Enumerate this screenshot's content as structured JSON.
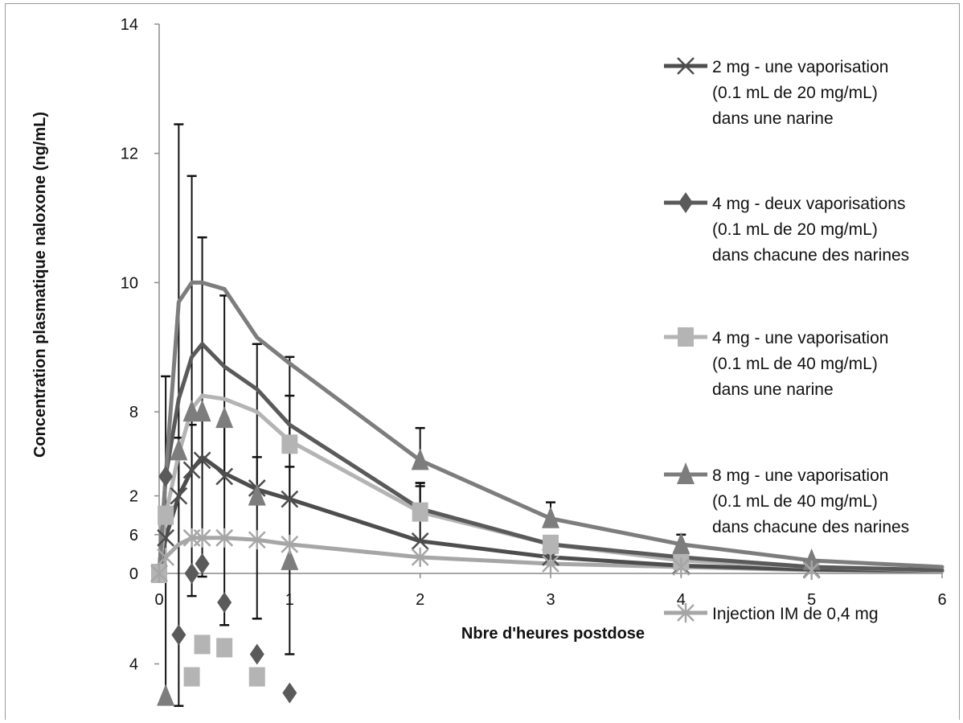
{
  "chart_data": {
    "type": "line",
    "title": "",
    "xlabel": "Nbre d'heures postdose",
    "ylabel": "Concentration plasmatique naloxone (ng/mL)",
    "x_ticks": [
      "0",
      "1",
      "2",
      "3",
      "4",
      "5",
      "6"
    ],
    "xlim": [
      0,
      6
    ],
    "y_ticks": [
      {
        "label": "0",
        "value": 0
      },
      {
        "label": "6",
        "value": 0.6
      },
      {
        "label": "2",
        "value": 1.2
      },
      {
        "label": "8",
        "value": 2.5
      },
      {
        "label": "10",
        "value": 4.5
      },
      {
        "label": "12",
        "value": 6.5
      },
      {
        "label": "14",
        "value": 8.5
      },
      {
        "label": "4",
        "value": -1.4
      }
    ],
    "ylim": [
      -2,
      8.5
    ],
    "grid": false,
    "legend_position": "right",
    "series": [
      {
        "name": "2 mg - une vaporisation (0.1 mL de 20 mg/mL) dans une narine",
        "legend_lines": [
          "2 mg - une vaporisation",
          "(0.1 mL de 20 mg/mL)",
          "dans une narine"
        ],
        "marker": "x",
        "color": "#4d4d4d",
        "x": [
          0,
          0.05,
          0.15,
          0.25,
          0.33,
          0.5,
          0.75,
          1,
          2,
          3,
          4,
          5,
          6
        ],
        "y": [
          0,
          0.55,
          1.2,
          1.6,
          1.8,
          1.55,
          1.3,
          1.15,
          0.5,
          0.25,
          0.12,
          0.06,
          0.04
        ],
        "error_upper": [
          null,
          null,
          2.1,
          2.3,
          2.4,
          2.4,
          1.8,
          1.65,
          1.4,
          null,
          null,
          null,
          null
        ],
        "markers_x": [
          0,
          0.05,
          0.15,
          0.25,
          0.33,
          0.5,
          0.75,
          1,
          2,
          3,
          4,
          5
        ],
        "markers_y": [
          0,
          0.55,
          1.2,
          1.6,
          1.75,
          1.5,
          1.32,
          1.15,
          0.5,
          0.25,
          0.12,
          0.06
        ]
      },
      {
        "name": "4 mg - deux vaporisations (0.1 mL de 20 mg/mL) dans chacune des narines",
        "legend_lines": [
          "4 mg - deux vaporisations",
          "(0.1 mL de 20 mg/mL)",
          "dans chacune des narines"
        ],
        "marker": "diamond",
        "color": "#5a5a5a",
        "x": [
          0,
          0.05,
          0.15,
          0.25,
          0.33,
          0.5,
          0.75,
          1,
          2,
          3,
          4,
          5,
          6
        ],
        "y": [
          0,
          1.5,
          2.7,
          3.35,
          3.55,
          3.2,
          2.85,
          2.3,
          1.0,
          0.45,
          0.25,
          0.1,
          0.05
        ],
        "error_upper": [
          null,
          3.05,
          6.95,
          6.15,
          5.2,
          4.3,
          3.55,
          3.35,
          1.4,
          null,
          null,
          null,
          null
        ],
        "error_lower": [
          null,
          -1.95,
          -2.05,
          -0.35,
          -0.05,
          -0.8,
          -0.7,
          -1.25,
          null,
          null,
          null,
          null,
          null
        ],
        "markers_x": [
          0.05,
          0.15,
          0.25,
          0.33,
          0.5,
          0.75,
          1
        ],
        "markers_y": [
          1.5,
          -0.95,
          0,
          0.15,
          -0.45,
          -1.25,
          -1.85
        ]
      },
      {
        "name": "4 mg - une vaporisation (0.1 mL de 40 mg/mL) dans une narine",
        "legend_lines": [
          "4 mg - une vaporisation",
          "(0.1 mL de 40 mg/mL)",
          "dans une narine"
        ],
        "marker": "square",
        "color": "#b4b4b4",
        "x": [
          0,
          0.05,
          0.15,
          0.25,
          0.33,
          0.5,
          0.75,
          1,
          2,
          3,
          4,
          5,
          6
        ],
        "y": [
          0,
          0.9,
          1.85,
          2.55,
          2.75,
          2.7,
          2.5,
          2.05,
          0.95,
          0.45,
          0.2,
          0.1,
          0.04
        ],
        "error_upper": [
          null,
          null,
          null,
          null,
          null,
          null,
          null,
          2.75,
          1.35,
          null,
          null,
          null,
          null
        ],
        "markers_x": [
          0,
          0.05,
          0.25,
          0.33,
          0.5,
          0.75,
          1,
          2,
          3,
          4
        ],
        "markers_y": [
          0,
          0.9,
          -1.6,
          -1.1,
          -1.15,
          -1.6,
          2.0,
          0.95,
          0.45,
          0.2
        ]
      },
      {
        "name": "8 mg - une vaporisation (0.1 mL de 40 mg/mL) dans chacune des narines",
        "legend_lines": [
          "8 mg - une vaporisation",
          "(0.1 mL de 40 mg/mL)",
          "dans chacune des narines"
        ],
        "marker": "triangle",
        "color": "#7d7d7d",
        "x": [
          0,
          0.05,
          0.15,
          0.25,
          0.33,
          0.5,
          0.75,
          1,
          2,
          3,
          4,
          5,
          6
        ],
        "y": [
          0,
          1.5,
          4.2,
          4.5,
          4.5,
          4.4,
          3.65,
          3.25,
          1.75,
          0.85,
          0.45,
          0.2,
          0.1
        ],
        "error_upper": [
          null,
          null,
          null,
          null,
          null,
          null,
          null,
          null,
          2.25,
          1.1,
          0.6,
          null,
          null
        ],
        "markers_x": [
          0.05,
          0.15,
          0.25,
          0.33,
          0.5,
          0.75,
          1,
          2,
          3,
          4,
          5
        ],
        "markers_y": [
          -1.9,
          1.9,
          2.5,
          2.5,
          2.4,
          1.2,
          0.2,
          1.75,
          0.85,
          0.45,
          0.2
        ]
      },
      {
        "name": "Injection IM de 0,4 mg",
        "legend_lines": [
          "Injection IM de 0,4 mg"
        ],
        "marker": "asterisk",
        "color": "#a6a6a6",
        "x": [
          0,
          0.05,
          0.15,
          0.25,
          0.33,
          0.5,
          0.75,
          1,
          2,
          3,
          4,
          5,
          6
        ],
        "y": [
          0,
          0.25,
          0.45,
          0.55,
          0.55,
          0.55,
          0.52,
          0.45,
          0.25,
          0.15,
          0.1,
          0.05,
          0.03
        ],
        "error_upper": [
          null,
          null,
          null,
          null,
          null,
          null,
          null,
          null,
          null,
          null,
          null,
          null,
          null
        ],
        "markers_x": [
          0,
          0.05,
          0.25,
          0.33,
          0.5,
          0.75,
          1,
          2,
          3,
          4,
          5
        ],
        "markers_y": [
          0,
          0.25,
          0.55,
          0.55,
          0.55,
          0.52,
          0.45,
          0.25,
          0.15,
          0.1,
          0.05
        ]
      }
    ]
  }
}
